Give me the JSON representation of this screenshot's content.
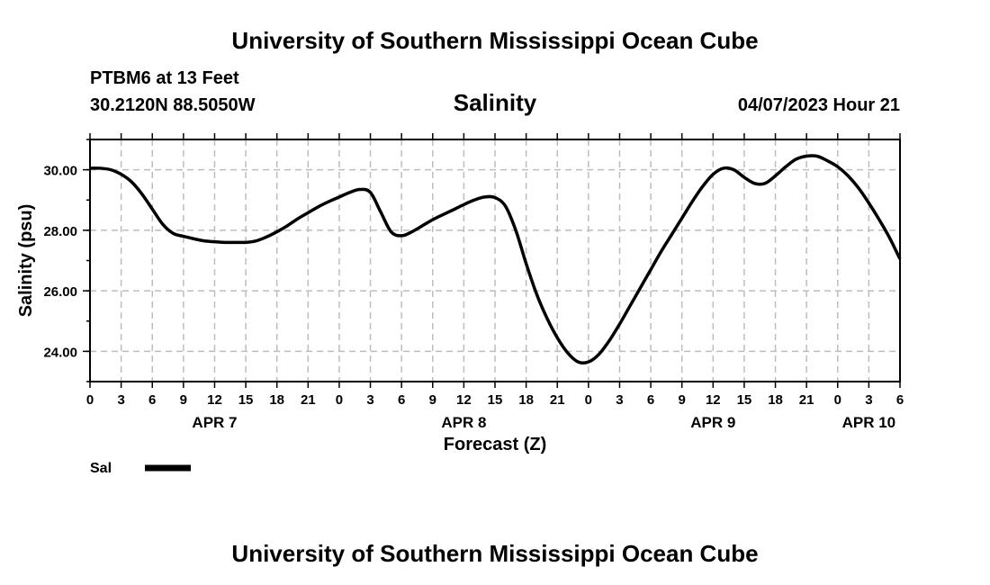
{
  "header": {
    "title": "University of Southern Mississippi Ocean Cube",
    "station": "PTBM6 at 13 Feet",
    "coords": "30.2120N  88.5050W",
    "chart_title": "Salinity",
    "datetime": "04/07/2023 Hour 21"
  },
  "footer": {
    "title": "University of Southern Mississippi Ocean Cube"
  },
  "chart_data": {
    "type": "line",
    "title": "Salinity",
    "xlabel": "Forecast (Z)",
    "ylabel": "Salinity (psu)",
    "xlim": [
      0,
      78
    ],
    "ylim": [
      23,
      31
    ],
    "grid": true,
    "x_tick_step": 3,
    "x_tick_labels": [
      "0",
      "3",
      "6",
      "9",
      "12",
      "15",
      "18",
      "21",
      "0",
      "3",
      "6",
      "9",
      "12",
      "15",
      "18",
      "21",
      "0",
      "3",
      "6",
      "9",
      "12",
      "15",
      "18",
      "21",
      "0",
      "3",
      "6"
    ],
    "y_ticks": [
      24,
      26,
      28,
      30
    ],
    "y_tick_labels": [
      "24.00",
      "26.00",
      "28.00",
      "30.00"
    ],
    "date_labels": [
      {
        "hour": 12,
        "label": "APR 7"
      },
      {
        "hour": 36,
        "label": "APR 8"
      },
      {
        "hour": 60,
        "label": "APR 9"
      },
      {
        "hour": 75,
        "label": "APR 10"
      }
    ],
    "legend": {
      "label": "Sal",
      "placement": "bottom-left"
    },
    "series": [
      {
        "name": "Sal",
        "x": [
          0,
          1,
          2,
          3,
          4,
          5,
          6,
          7,
          8,
          9,
          10,
          11,
          12,
          13,
          14,
          15,
          16,
          17,
          18,
          19,
          20,
          21,
          22,
          23,
          24,
          25,
          26,
          27,
          28,
          29,
          30,
          31,
          32,
          33,
          34,
          35,
          36,
          37,
          38,
          39,
          40,
          41,
          42,
          43,
          44,
          45,
          46,
          47,
          48,
          49,
          50,
          51,
          52,
          53,
          54,
          55,
          56,
          57,
          58,
          59,
          60,
          61,
          62,
          63,
          64,
          65,
          66,
          67,
          68,
          69,
          70,
          71,
          72,
          73,
          74,
          75,
          76,
          77,
          78
        ],
        "y": [
          30.05,
          30.05,
          30.0,
          29.85,
          29.6,
          29.2,
          28.7,
          28.2,
          27.9,
          27.8,
          27.72,
          27.65,
          27.62,
          27.6,
          27.6,
          27.6,
          27.65,
          27.78,
          27.95,
          28.15,
          28.38,
          28.58,
          28.78,
          28.95,
          29.1,
          29.25,
          29.35,
          29.25,
          28.6,
          27.95,
          27.82,
          27.95,
          28.15,
          28.35,
          28.52,
          28.68,
          28.85,
          29.0,
          29.1,
          29.08,
          28.8,
          28.0,
          26.9,
          25.9,
          25.1,
          24.45,
          23.95,
          23.65,
          23.65,
          23.9,
          24.35,
          24.9,
          25.5,
          26.1,
          26.7,
          27.3,
          27.85,
          28.4,
          28.95,
          29.45,
          29.85,
          30.05,
          30.0,
          29.75,
          29.55,
          29.55,
          29.8,
          30.1,
          30.35,
          30.45,
          30.45,
          30.3,
          30.1,
          29.8,
          29.4,
          28.9,
          28.35,
          27.75,
          27.05
        ]
      }
    ]
  }
}
